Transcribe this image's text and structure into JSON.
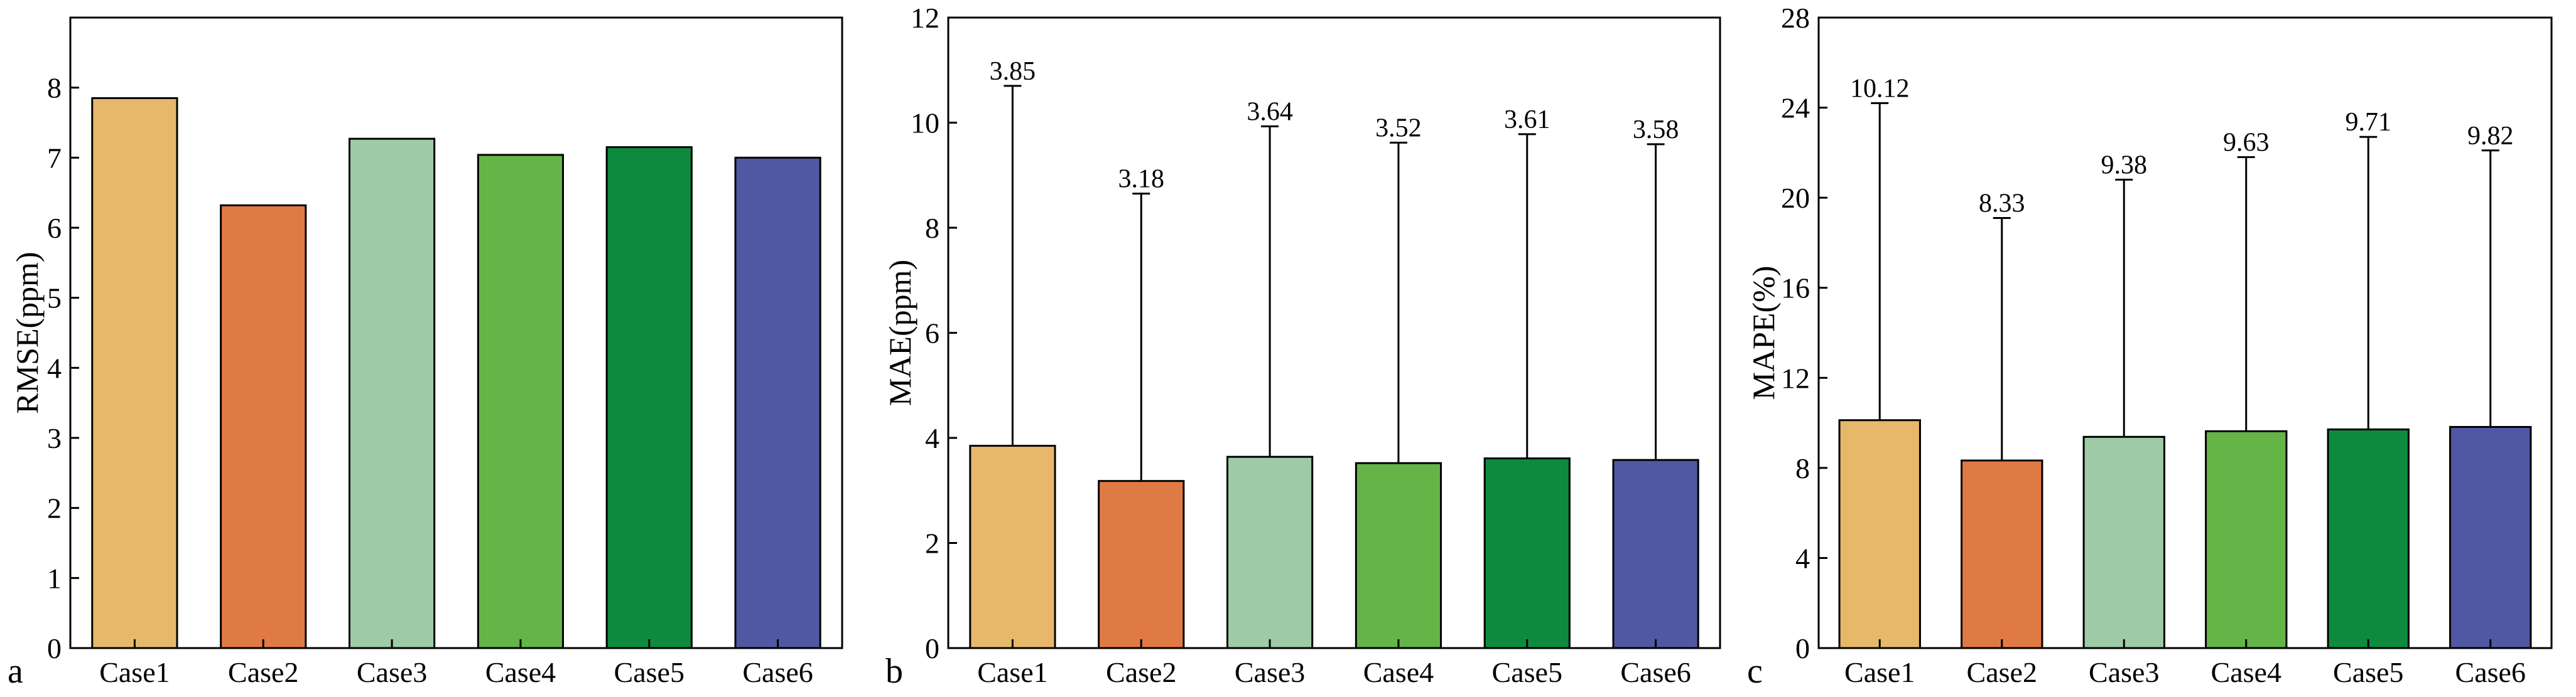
{
  "colors": {
    "Case1": "#E8B86A",
    "Case2": "#E07A45",
    "Case3": "#9ECBA6",
    "Case4": "#65B447",
    "Case5": "#0E8A3E",
    "Case6": "#5058A3",
    "axis": "#000000"
  },
  "chart_data": [
    {
      "type": "bar",
      "panel": "a",
      "categories": [
        "Case1",
        "Case2",
        "Case3",
        "Case4",
        "Case5",
        "Case6"
      ],
      "values": [
        7.85,
        6.32,
        7.27,
        7.04,
        7.15,
        7.0
      ],
      "ylabel": "RMSE(ppm)",
      "ylim": [
        0,
        9
      ],
      "yticks": [
        "0",
        "1",
        "2",
        "3",
        "4",
        "5",
        "6",
        "7",
        "8"
      ],
      "error_bars": false
    },
    {
      "type": "bar",
      "panel": "b",
      "categories": [
        "Case1",
        "Case2",
        "Case3",
        "Case4",
        "Case5",
        "Case6"
      ],
      "values": [
        3.85,
        3.18,
        3.64,
        3.52,
        3.61,
        3.58
      ],
      "labels": [
        "3.85",
        "3.18",
        "3.64",
        "3.52",
        "3.61",
        "3.58"
      ],
      "error_tops": [
        10.7,
        8.65,
        9.93,
        9.62,
        9.78,
        9.59
      ],
      "ylabel": "MAE(ppm)",
      "ylim": [
        0,
        12
      ],
      "yticks": [
        "0",
        "2",
        "4",
        "6",
        "8",
        "10",
        "12"
      ],
      "error_bars": true
    },
    {
      "type": "bar",
      "panel": "c",
      "categories": [
        "Case1",
        "Case2",
        "Case3",
        "Case4",
        "Case5",
        "Case6"
      ],
      "values": [
        10.12,
        8.33,
        9.38,
        9.63,
        9.71,
        9.82
      ],
      "labels": [
        "10.12",
        "8.33",
        "9.38",
        "9.63",
        "9.71",
        "9.82"
      ],
      "error_tops": [
        24.2,
        19.1,
        20.8,
        21.8,
        22.7,
        22.1
      ],
      "ylabel": "MAPE(%)",
      "ylim": [
        0,
        28
      ],
      "yticks": [
        "0",
        "4",
        "8",
        "12",
        "16",
        "20",
        "24",
        "28"
      ],
      "error_bars": true
    }
  ]
}
